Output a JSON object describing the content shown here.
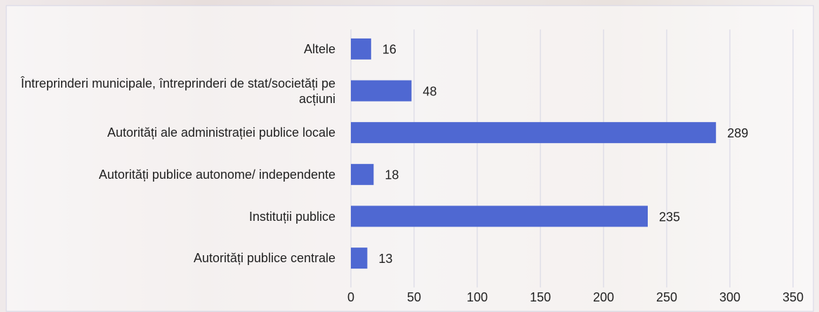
{
  "chart_data": {
    "type": "bar",
    "orientation": "horizontal",
    "categories": [
      "Altele",
      "Întreprinderi municipale, întreprinderi de stat/societăți pe acțiuni",
      "Autorități ale administrației publice locale",
      "Autorități publice autonome/ independente",
      "Instituții publice",
      "Autorități publice centrale"
    ],
    "values": [
      16,
      48,
      289,
      18,
      235,
      13
    ],
    "color": "#4f68d2",
    "xlim": [
      0,
      350
    ],
    "xticks": [
      0,
      50,
      100,
      150,
      200,
      250,
      300,
      350
    ],
    "grid": true
  }
}
